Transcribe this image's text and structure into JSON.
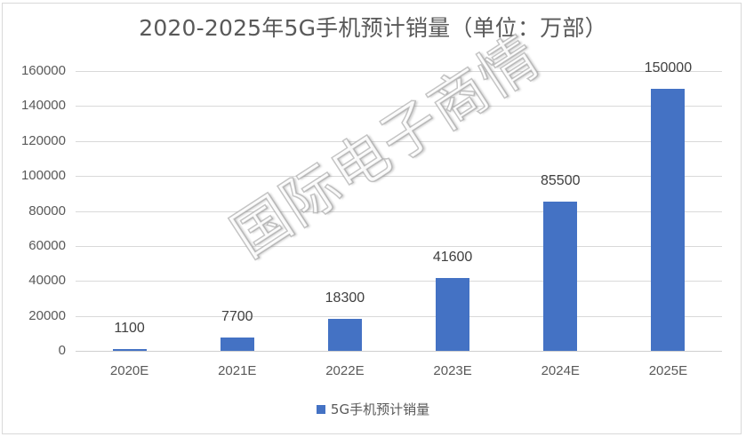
{
  "chart_data": {
    "type": "bar",
    "title": "2020-2025年5G手机预计销量（单位：万部）",
    "categories": [
      "2020E",
      "2021E",
      "2022E",
      "2023E",
      "2024E",
      "2025E"
    ],
    "series": [
      {
        "name": "5G手机预计销量",
        "color": "#4472c4",
        "values": [
          1100,
          7700,
          18300,
          41600,
          85500,
          150000
        ]
      }
    ],
    "data_labels": [
      "1100",
      "7700",
      "18300",
      "41600",
      "85500",
      "150000"
    ],
    "xlabel": "",
    "ylabel": "",
    "ylim": [
      0,
      160000
    ],
    "yticks": [
      "0",
      "20000",
      "40000",
      "60000",
      "80000",
      "100000",
      "120000",
      "140000",
      "160000"
    ],
    "grid": true,
    "legend_position": "bottom"
  },
  "watermark": "国际电子商情"
}
